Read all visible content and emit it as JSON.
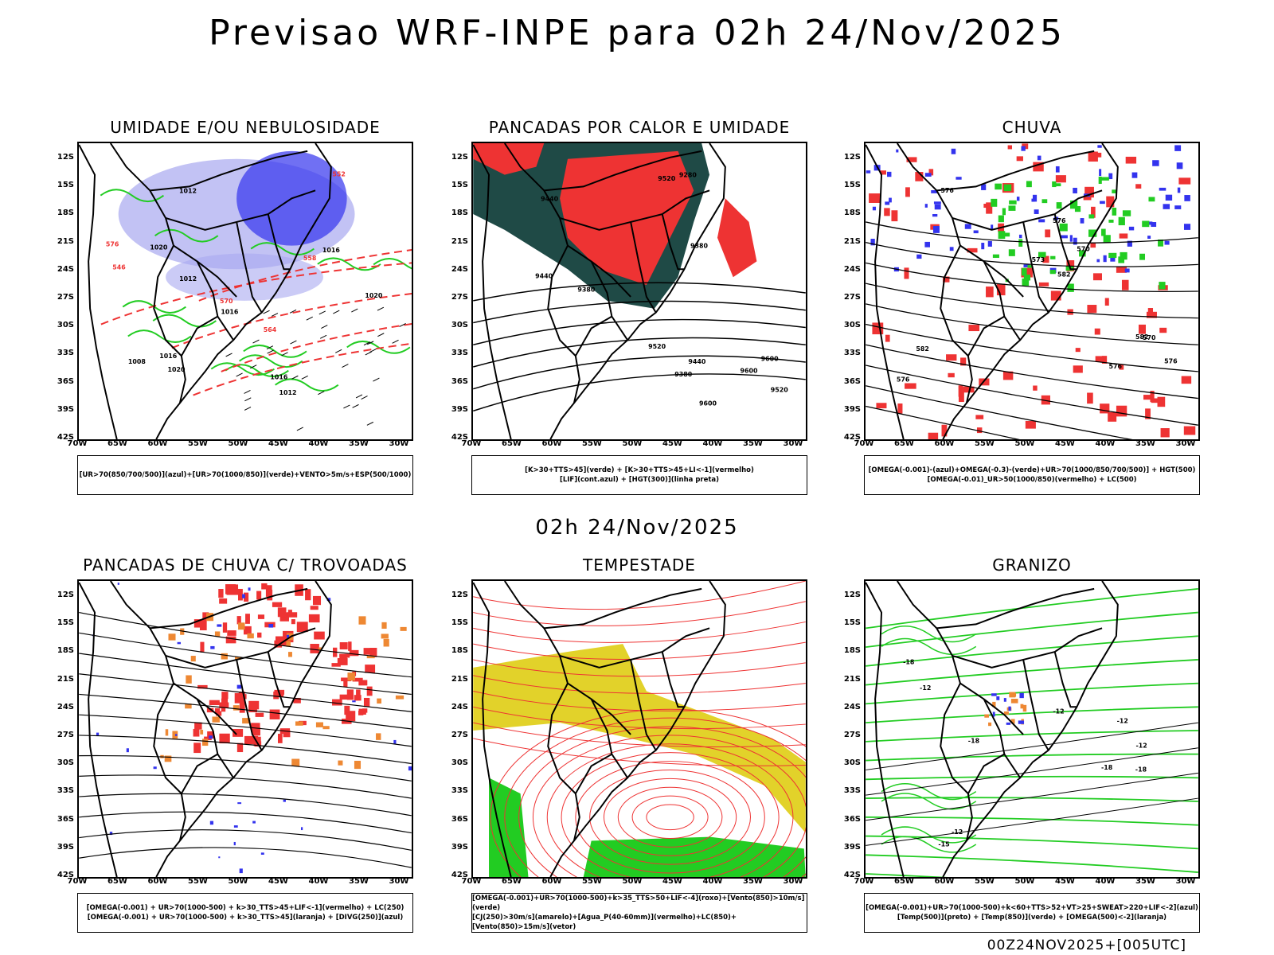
{
  "title": "Previsao WRF-INPE  para 02h 24/Nov/2025",
  "mid_date": "02h 24/Nov/2025",
  "footer": "00Z24NOV2025+[005UTC]",
  "latitude_ticks": [
    "12S",
    "15S",
    "18S",
    "21S",
    "24S",
    "27S",
    "30S",
    "33S",
    "36S",
    "39S",
    "42S"
  ],
  "longitude_ticks": [
    "70W",
    "65W",
    "60W",
    "55W",
    "50W",
    "45W",
    "40W",
    "35W",
    "30W"
  ],
  "colors": {
    "blue": "#3333ee",
    "green": "#22cc22",
    "red": "#ee3333",
    "dark_teal": "#1f4a46",
    "yellow": "#e2d22a",
    "lavender": "#a8a8f0",
    "orange": "#ee8833"
  },
  "panels": [
    {
      "id": "umidade",
      "title": "UMIDADE E/OU NEBULOSIDADE",
      "legend": [
        "[UR>70(850/700/500)](azul)+[UR>70(1000/850)](verde)+VENTO>5m/s+ESP(500/1000)"
      ],
      "contour_labels": [
        "1012",
        "1012",
        "1016",
        "1020",
        "1016",
        "1016",
        "1020",
        "1012",
        "1016",
        "1020",
        "1008",
        "576",
        "570",
        "564",
        "558",
        "552",
        "546"
      ]
    },
    {
      "id": "pancadas-calor",
      "title": "PANCADAS POR CALOR E UMIDADE",
      "legend": [
        "[K>30+TTS>45](verde)  +  [K>30+TTS>45+LI<-1](vermelho)",
        "[LIF](cont.azul)  +  [HGT(300)](linha preta)"
      ],
      "contour_labels": [
        "9600",
        "9600",
        "9520",
        "9520",
        "9440",
        "9380",
        "9600",
        "9520",
        "9440",
        "9380",
        "9440",
        "9380",
        "9280"
      ]
    },
    {
      "id": "chuva",
      "title": "CHUVA",
      "legend": [
        "[OMEGA(-0.001)-(azul)+OMEGA(-0.3)-(verde)+UR>70(1000/850/700/500)]  +  HGT(500)",
        "[OMEGA(-0.01)_UR>50(1000/850)(vermelho)  +  LC(500)"
      ],
      "contour_labels": [
        "582",
        "582",
        "582",
        "576",
        "576",
        "576",
        "573",
        "570",
        "570",
        "576",
        "576"
      ]
    },
    {
      "id": "pancadas-trovoadas",
      "title": "PANCADAS DE CHUVA C/ TROVOADAS",
      "legend": [
        "[OMEGA(-0.001)  +  UR>70(1000-500)  +  k>30_TTS>45+LIF<-1](vermelho)  +  LC(250)",
        "[OMEGA(-0.001)  +  UR>70(1000-500)  +  k>30_TTS>45](laranja)  +  [DIVG(250)](azul)"
      ],
      "contour_labels": []
    },
    {
      "id": "tempestade",
      "title": "TEMPESTADE",
      "legend": [
        "[OMEGA(-0.001)+UR>70(1000-500)+k>35_TTS>50+LIF<-4](roxo)+[Vento(850)>10m/s](verde)",
        "[CJ(250)>30m/s](amarelo)+[Agua_P(40-60mm)](vermelho)+LC(850)+[Vento(850)>15m/s](vetor)"
      ],
      "contour_labels": []
    },
    {
      "id": "granizo",
      "title": "GRANIZO",
      "legend": [
        "[OMEGA(-0.001)+UR>70(1000-500)+k<60+TTS>52+VT>25+SWEAT>220+LIF<-2](azul)",
        "[Temp(500)](preto)  +  [Temp(850)](verde)  +  [OMEGA(500)<-2](laranja)"
      ],
      "contour_labels": [
        "-12",
        "-12",
        "-12",
        "-15",
        "-18",
        "-18",
        "-18",
        "-18",
        "-12",
        "-12"
      ]
    }
  ]
}
